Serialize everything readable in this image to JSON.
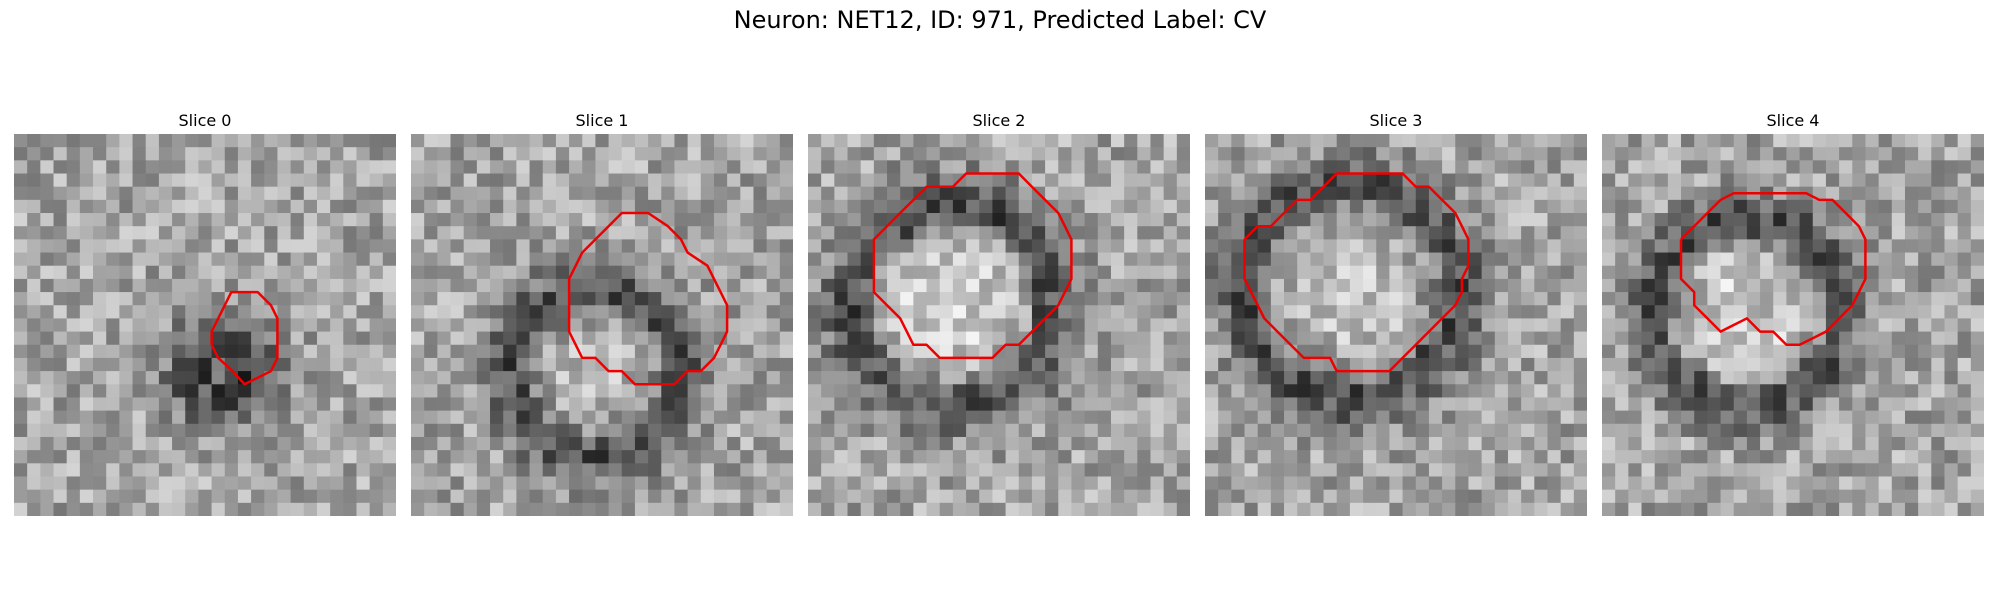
{
  "figure": {
    "title": "Neuron: NET12, ID: 971, Predicted Label: CV"
  },
  "panels": [
    {
      "label": "Slice 0",
      "contour": [
        [
          16,
          15
        ],
        [
          17,
          15.5
        ],
        [
          18,
          16.6
        ],
        [
          19,
          17.5
        ],
        [
          18.5,
          18.5
        ],
        [
          18,
          19.5
        ],
        [
          17,
          20
        ],
        [
          16,
          20
        ],
        [
          15,
          20
        ],
        [
          14,
          20
        ],
        [
          13,
          19.5
        ],
        [
          12,
          18.5
        ],
        [
          12,
          17.5
        ],
        [
          12,
          16.5
        ],
        [
          13,
          16
        ],
        [
          14,
          15.5
        ],
        [
          15,
          15
        ]
      ]
    },
    {
      "label": "Slice 1",
      "contour": [
        [
          13,
          12
        ],
        [
          14,
          12
        ],
        [
          15,
          12
        ],
        [
          16,
          12.5
        ],
        [
          17,
          13
        ],
        [
          17,
          14
        ],
        [
          18,
          15
        ],
        [
          18,
          16
        ],
        [
          19,
          17
        ],
        [
          19,
          18
        ],
        [
          19,
          19
        ],
        [
          19,
          20
        ],
        [
          18,
          21
        ],
        [
          18,
          22
        ],
        [
          17,
          23
        ],
        [
          16,
          23.5
        ],
        [
          15,
          24
        ],
        [
          14,
          24
        ],
        [
          13,
          24
        ],
        [
          12,
          23.5
        ],
        [
          11,
          23
        ],
        [
          10,
          22.5
        ],
        [
          9,
          21
        ],
        [
          8,
          20.5
        ],
        [
          7,
          19.5
        ],
        [
          6,
          18
        ],
        [
          6,
          17
        ],
        [
          6,
          16
        ],
        [
          7,
          15
        ],
        [
          8,
          14
        ],
        [
          9,
          13
        ],
        [
          10,
          12.5
        ],
        [
          11,
          12
        ]
      ]
    },
    {
      "label": "Slice 2",
      "contour": [
        [
          9,
          5
        ],
        [
          10,
          5
        ],
        [
          11,
          5
        ],
        [
          12,
          5
        ],
        [
          13,
          6
        ],
        [
          14,
          7
        ],
        [
          15,
          7.5
        ],
        [
          16,
          8
        ],
        [
          16,
          9
        ],
        [
          17,
          10
        ],
        [
          17,
          11
        ],
        [
          17,
          12
        ],
        [
          17,
          13
        ],
        [
          17,
          14
        ],
        [
          16,
          15
        ],
        [
          16,
          16
        ],
        [
          15,
          17
        ],
        [
          14,
          18
        ],
        [
          13,
          19
        ],
        [
          12,
          19.5
        ],
        [
          11,
          20
        ],
        [
          10,
          20
        ],
        [
          9,
          20
        ],
        [
          8,
          20
        ],
        [
          7,
          19.5
        ],
        [
          6,
          19
        ],
        [
          5,
          18
        ],
        [
          4,
          17
        ],
        [
          3,
          16
        ],
        [
          3,
          15
        ],
        [
          3,
          14
        ],
        [
          3,
          13
        ],
        [
          3,
          12
        ],
        [
          4,
          11
        ],
        [
          4,
          10
        ],
        [
          4,
          9
        ],
        [
          5,
          8
        ],
        [
          6,
          7
        ],
        [
          7,
          6
        ],
        [
          8,
          5
        ]
      ]
    },
    {
      "label": "Slice 3",
      "contour": [
        [
          8,
          3
        ],
        [
          9,
          3
        ],
        [
          10,
          3
        ],
        [
          11,
          3
        ],
        [
          12,
          3.5
        ],
        [
          13,
          4
        ],
        [
          14,
          4.5
        ],
        [
          15,
          5.5
        ],
        [
          16,
          6.5
        ],
        [
          17,
          7.5
        ],
        [
          17,
          8.5
        ],
        [
          17,
          9.5
        ],
        [
          18,
          10
        ],
        [
          18,
          11
        ],
        [
          18,
          12
        ],
        [
          18,
          13
        ],
        [
          18,
          14
        ],
        [
          17,
          15
        ],
        [
          16,
          16
        ],
        [
          15,
          17
        ],
        [
          14,
          18
        ],
        [
          13,
          19
        ],
        [
          12,
          19.5
        ],
        [
          11,
          19.5
        ],
        [
          10,
          20
        ],
        [
          9,
          20
        ],
        [
          8,
          20
        ],
        [
          7,
          19.5
        ],
        [
          6,
          19
        ],
        [
          5,
          18
        ],
        [
          4,
          17
        ],
        [
          4,
          16
        ],
        [
          3,
          15
        ],
        [
          3,
          14
        ],
        [
          3,
          13
        ],
        [
          3,
          12
        ],
        [
          3,
          11
        ],
        [
          3,
          10
        ],
        [
          4,
          9
        ],
        [
          5,
          8
        ],
        [
          5,
          7
        ],
        [
          6,
          6
        ],
        [
          7,
          5
        ],
        [
          7,
          4
        ]
      ]
    },
    {
      "label": "Slice 4",
      "contour": [
        [
          8,
          6
        ],
        [
          9,
          6
        ],
        [
          10,
          6
        ],
        [
          11,
          6
        ],
        [
          12,
          7
        ],
        [
          13,
          7
        ],
        [
          14,
          8
        ],
        [
          15,
          9
        ],
        [
          14.5,
          10
        ],
        [
          14,
          11
        ],
        [
          14.5,
          11.5
        ],
        [
          15,
          12
        ],
        [
          15,
          13
        ],
        [
          16,
          14
        ],
        [
          16,
          15
        ],
        [
          15.5,
          16
        ],
        [
          15,
          17
        ],
        [
          14,
          18
        ],
        [
          13,
          19
        ],
        [
          12,
          19.5
        ],
        [
          11,
          20
        ],
        [
          10,
          20
        ],
        [
          9,
          20
        ],
        [
          8,
          20
        ],
        [
          7,
          19.5
        ],
        [
          6,
          18.5
        ],
        [
          5,
          17.5
        ],
        [
          5,
          16.5
        ],
        [
          4.5,
          15.5
        ],
        [
          4.5,
          14
        ],
        [
          4.5,
          13
        ],
        [
          4.5,
          12
        ],
        [
          4.5,
          11
        ],
        [
          4.5,
          10
        ],
        [
          5,
          9
        ],
        [
          6,
          8
        ],
        [
          7,
          7
        ]
      ]
    }
  ]
}
